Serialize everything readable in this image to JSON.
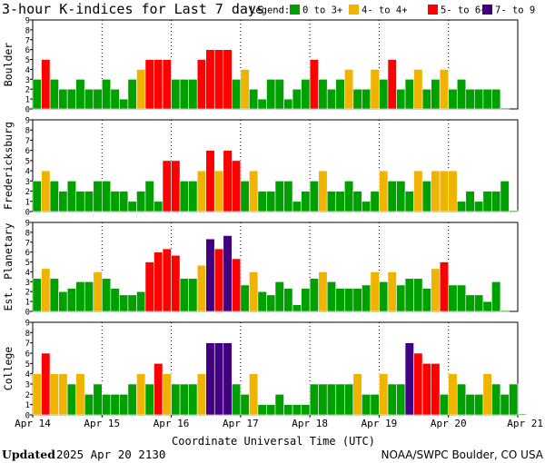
{
  "header": {
    "title": "3-hour K-indices for Last 7 days",
    "legend_label": "Legend:",
    "legend": [
      {
        "label": "0 to 3+",
        "color": "#00a000"
      },
      {
        "label": "4- to 4+",
        "color": "#f0b400"
      },
      {
        "label": "5- to 6+",
        "color": "#ff0000"
      },
      {
        "label": "7- to 9",
        "color": "#400080"
      }
    ]
  },
  "footer": {
    "updated_label": "Updated",
    "updated_value": "2025 Apr 20 2130",
    "credit": "NOAA/SWPC Boulder, CO USA"
  },
  "chart_data": {
    "type": "bar",
    "xlabel": "Coordinate Universal Time (UTC)",
    "x_tick_labels": [
      "Apr 14",
      "Apr 15",
      "Apr 16",
      "Apr 17",
      "Apr 18",
      "Apr 19",
      "Apr 20",
      "Apr 21"
    ],
    "ylim": [
      0,
      9
    ],
    "y_ticks": [
      0,
      1,
      2,
      3,
      4,
      5,
      6,
      7,
      8,
      9
    ],
    "bars_per_day": 8,
    "panels": [
      {
        "name": "Boulder",
        "values": [
          3,
          5,
          3,
          2,
          2,
          3,
          2,
          2,
          3,
          2,
          1,
          3,
          4,
          5,
          5,
          5,
          3,
          3,
          3,
          5,
          6,
          6,
          6,
          3,
          4,
          2,
          1,
          3,
          3,
          1,
          2,
          3,
          5,
          3,
          2,
          3,
          4,
          2,
          2,
          4,
          3,
          5,
          2,
          3,
          4,
          2,
          3,
          4,
          2,
          3,
          2,
          2,
          2,
          2,
          0.1
        ]
      },
      {
        "name": "Fredericksburg",
        "values": [
          3,
          4,
          3,
          2,
          3,
          2,
          2,
          3,
          3,
          2,
          2,
          1,
          2,
          3,
          1,
          5,
          5,
          3,
          3,
          4,
          6,
          4,
          6,
          5,
          3,
          4,
          2,
          2,
          3,
          3,
          1,
          2,
          3,
          4,
          2,
          2,
          3,
          2,
          1,
          2,
          4,
          3,
          3,
          2,
          4,
          3,
          4,
          4,
          4,
          1,
          2,
          1,
          2,
          2,
          3,
          0.1
        ]
      },
      {
        "name": "Est. Planetary",
        "values": [
          3.33,
          4.33,
          3.33,
          2,
          2.33,
          3,
          3,
          4,
          3.33,
          2.33,
          1.67,
          1.67,
          2,
          5,
          6,
          6.33,
          5.67,
          3.33,
          3.33,
          4.67,
          7.33,
          6.33,
          7.67,
          5.33,
          2.67,
          4,
          2,
          1.67,
          3,
          2.33,
          0.67,
          2.33,
          3.33,
          4,
          3,
          2.33,
          2.33,
          2.33,
          2.67,
          4,
          3,
          4,
          2.67,
          3.33,
          3.33,
          2.33,
          4.33,
          5,
          2.67,
          2.67,
          1.67,
          1.67,
          1,
          3,
          0.1
        ]
      },
      {
        "name": "College",
        "values": [
          4,
          6,
          4,
          4,
          3,
          4,
          2,
          3,
          2,
          2,
          2,
          3,
          4,
          3,
          5,
          4,
          3,
          3,
          3,
          4,
          7,
          7,
          7,
          3,
          2,
          4,
          1,
          1,
          2,
          1,
          1,
          1,
          3,
          3,
          3,
          3,
          3,
          4,
          2,
          2,
          4,
          3,
          3,
          7,
          6,
          5,
          5,
          2,
          4,
          3,
          2,
          2,
          4,
          3,
          2,
          3,
          0.1
        ]
      }
    ]
  }
}
